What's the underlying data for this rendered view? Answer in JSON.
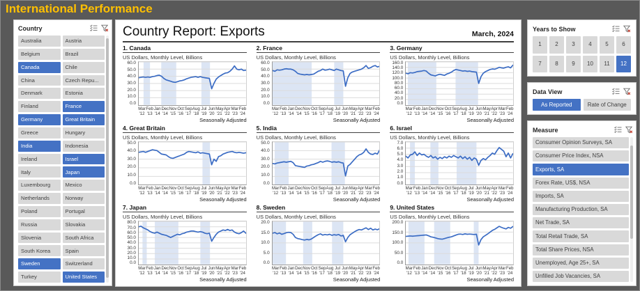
{
  "app": {
    "title": "International Performance"
  },
  "colors": {
    "accent": "#4472C4",
    "line": "#3B6CC4",
    "band": "#DCE5F4",
    "grid": "#DCDCDC",
    "title_gold": "#FFC000",
    "background": "#595959",
    "button_gray": "#D9D9D9"
  },
  "country_panel": {
    "title": "Country",
    "selected": [
      "Canada",
      "France",
      "Germany",
      "Great Britain",
      "India",
      "Israel",
      "Japan",
      "Sweden",
      "United States"
    ],
    "items": [
      "Australia",
      "Austria",
      "Belgium",
      "Brazil",
      "Canada",
      "Chile",
      "China",
      "Czech Repu...",
      "Denmark",
      "Estonia",
      "Finland",
      "France",
      "Germany",
      "Great Britain",
      "Greece",
      "Hungary",
      "India",
      "Indonesia",
      "Ireland",
      "Israel",
      "Italy",
      "Japan",
      "Luxembourg",
      "Mexico",
      "Netherlands",
      "Norway",
      "Poland",
      "Portugal",
      "Russia",
      "Slovakia",
      "Slovenia",
      "South Africa",
      "South Korea",
      "Spain",
      "Sweden",
      "Switzerland",
      "Turkey",
      "United States"
    ]
  },
  "main": {
    "title": "Country Report: Exports",
    "date": "March, 2024"
  },
  "chart_common": {
    "subtitle": "US Dollars, Monthly Level, Billions",
    "footer": "Seasonally Adjusted",
    "x_months": [
      "Mar",
      "Feb",
      "Jan",
      "Dec",
      "Nov",
      "Oct",
      "Sep",
      "Aug",
      "Jul",
      "Jun",
      "May",
      "Apr",
      "Mar",
      "Feb"
    ],
    "x_years": [
      "'12",
      "'13",
      "'14",
      "'14",
      "'15",
      "'16",
      "'17",
      "'18",
      "'19",
      "'20",
      "'21",
      "'22",
      "'23",
      "'24"
    ]
  },
  "chart_data": [
    {
      "type": "line",
      "title": "1. Canada",
      "country": "Canada",
      "ylabel": "US Dollars, Monthly Level, Billions",
      "ylim": [
        0,
        60
      ],
      "yticks": [
        0,
        10,
        20,
        30,
        40,
        50,
        60
      ],
      "bands": [
        [
          0.045,
          0.105
        ],
        [
          0.21,
          0.35
        ],
        [
          0.585,
          0.665
        ]
      ],
      "values": [
        38,
        38.5,
        39,
        38.5,
        39,
        38.5,
        39.5,
        40,
        41,
        41.5,
        40,
        37,
        35,
        34,
        33,
        32,
        31.5,
        32.5,
        33.5,
        34,
        35,
        36.5,
        37.5,
        38.5,
        39,
        39.5,
        38.5,
        39.5,
        38.5,
        38,
        37.5,
        37,
        22.5,
        30,
        36,
        39,
        41,
        43,
        44.5,
        45,
        47,
        50,
        54.5,
        50,
        49,
        50,
        48,
        48.5
      ]
    },
    {
      "type": "line",
      "title": "2. France",
      "country": "France",
      "ylabel": "US Dollars, Monthly Level, Billions",
      "ylim": [
        0,
        60
      ],
      "yticks": [
        0,
        10,
        20,
        30,
        40,
        50,
        60
      ],
      "bands": [
        [
          0.0,
          0.365
        ],
        [
          0.575,
          0.66
        ]
      ],
      "values": [
        48,
        47,
        49,
        48.5,
        49,
        50,
        50.5,
        50,
        50,
        49,
        47,
        44,
        43,
        42.5,
        42,
        42.5,
        42,
        42.5,
        43,
        45,
        47,
        48,
        50,
        48.5,
        49,
        50,
        49,
        48,
        50,
        49,
        48,
        47.5,
        26,
        38,
        44,
        46,
        47,
        48,
        49,
        50,
        52,
        55,
        51,
        52,
        54,
        55,
        53,
        54
      ]
    },
    {
      "type": "line",
      "title": "3. Germany",
      "country": "Germany",
      "ylabel": "US Dollars, Monthly Level, Billions",
      "ylim": [
        0,
        160
      ],
      "yticks": [
        0,
        20,
        40,
        60,
        80,
        100,
        120,
        140,
        160
      ],
      "bands": [
        [
          0.02,
          0.285
        ],
        [
          0.465,
          0.675
        ]
      ],
      "values": [
        118,
        116,
        120,
        119,
        121,
        124,
        125,
        126,
        128,
        126,
        118,
        112,
        110,
        108,
        112,
        114,
        112,
        110,
        115,
        118,
        122,
        128,
        132,
        130,
        128,
        126,
        127,
        125,
        126,
        124,
        123,
        122,
        80,
        105,
        118,
        124,
        128,
        132,
        134,
        133,
        136,
        140,
        138,
        137,
        140,
        142,
        138,
        148
      ]
    },
    {
      "type": "line",
      "title": "4. Great Britain",
      "country": "Great Britain",
      "ylabel": "US Dollars, Monthly Level, Billions",
      "ylim": [
        0,
        50
      ],
      "yticks": [
        0,
        10,
        20,
        30,
        40,
        50
      ],
      "bands": [
        [
          0.595,
          0.665
        ]
      ],
      "values": [
        38,
        38.5,
        39,
        38,
        39,
        40,
        41,
        40.5,
        40,
        38,
        36,
        35.5,
        35,
        33,
        31.5,
        31,
        32,
        33,
        34,
        35,
        36,
        38,
        39,
        38.5,
        38,
        37.5,
        38.5,
        37,
        37.5,
        37,
        36.5,
        36,
        23.5,
        30,
        27.5,
        33,
        34,
        36,
        37,
        38,
        38.5,
        39,
        38,
        37.5,
        38,
        37.5,
        37,
        37.5
      ]
    },
    {
      "type": "line",
      "title": "5. India",
      "country": "India",
      "ylabel": "US Dollars, Monthly Level, Billions",
      "ylim": [
        0,
        50
      ],
      "yticks": [
        0,
        10,
        20,
        30,
        40,
        50
      ],
      "bands": [
        [
          0.02,
          0.15
        ],
        [
          0.55,
          0.675
        ]
      ],
      "values": [
        25,
        24.5,
        25.5,
        26,
        26.5,
        27,
        26.5,
        27,
        27.5,
        26,
        22.5,
        22,
        21.5,
        21,
        20.5,
        22,
        22.5,
        23.5,
        24,
        25,
        26,
        27.5,
        26.5,
        27.5,
        28,
        27.5,
        26.5,
        27,
        26.5,
        27,
        26,
        25.5,
        10.5,
        22,
        24,
        27,
        30,
        33,
        35,
        36,
        38,
        42,
        38,
        36,
        35.5,
        37,
        36,
        41
      ]
    },
    {
      "type": "line",
      "title": "6. Israel",
      "country": "Israel",
      "ylabel": "US Dollars, Monthly Level, Billions",
      "ylim": [
        0,
        7
      ],
      "yticks": [
        0,
        1,
        2,
        3,
        4,
        5,
        6,
        7
      ],
      "bands": [
        [
          0.04,
          0.085
        ],
        [
          0.23,
          0.305
        ],
        [
          0.475,
          0.66
        ]
      ],
      "values": [
        4.7,
        4.4,
        4.9,
        5.0,
        5.4,
        4.8,
        5.2,
        4.9,
        5.0,
        4.7,
        4.5,
        4.8,
        4.4,
        4.6,
        4.2,
        4.5,
        4.3,
        4.6,
        4.4,
        4.7,
        4.5,
        4.8,
        4.6,
        4.4,
        4.7,
        4.3,
        4.6,
        4.2,
        4.5,
        4.0,
        4.4,
        4.2,
        3.2,
        4.0,
        4.3,
        4.1,
        4.5,
        4.8,
        5.2,
        5.0,
        5.6,
        6.1,
        5.8,
        5.5,
        4.6,
        5.2,
        4.4,
        5.1
      ]
    },
    {
      "type": "line",
      "title": "7. Japan",
      "country": "Japan",
      "ylabel": "US Dollars, Monthly Level, Billions",
      "ylim": [
        0,
        80
      ],
      "yticks": [
        0,
        10,
        20,
        30,
        40,
        50,
        60,
        70,
        80
      ],
      "bands": [
        [
          0.035,
          0.075
        ],
        [
          0.15,
          0.37
        ],
        [
          0.575,
          0.665
        ]
      ],
      "values": [
        70,
        71,
        68,
        66,
        64,
        61,
        59,
        58,
        60,
        58,
        56,
        55,
        54,
        52,
        50,
        52,
        54,
        56,
        55,
        57,
        58,
        60,
        61,
        62,
        62,
        61,
        60,
        61,
        60,
        58,
        57,
        58,
        43,
        50,
        56,
        60,
        62,
        64,
        63,
        65,
        63,
        64,
        60,
        58,
        57,
        59,
        62,
        58
      ]
    },
    {
      "type": "line",
      "title": "8. Sweden",
      "country": "Sweden",
      "ylabel": "US Dollars, Monthly Level, Billions",
      "ylim": [
        0,
        20
      ],
      "yticks": [
        0,
        5,
        10,
        15,
        20
      ],
      "bands": [
        [
          0.0,
          0.125
        ],
        [
          0.285,
          0.37
        ],
        [
          0.555,
          0.66
        ]
      ],
      "values": [
        14.5,
        14.8,
        14.2,
        14.6,
        14.0,
        14.3,
        14.7,
        14.9,
        14.8,
        14.0,
        12.5,
        12.0,
        11.8,
        11.5,
        11.3,
        11.6,
        11.4,
        11.8,
        12.5,
        13.2,
        13.8,
        14.2,
        13.6,
        13.9,
        13.7,
        14.0,
        13.5,
        13.8,
        13.6,
        13.9,
        13.2,
        13.5,
        10.5,
        12.5,
        13.8,
        14.5,
        15.2,
        15.8,
        16.2,
        16.0,
        16.5,
        17.0,
        16.2,
        16.8,
        16.0,
        16.4,
        16.1,
        16.6
      ]
    },
    {
      "type": "line",
      "title": "9. United States",
      "country": "United States",
      "ylabel": "US Dollars, Monthly Level, Billions",
      "ylim": [
        0,
        200
      ],
      "yticks": [
        0,
        50,
        100,
        150,
        200
      ],
      "bands": [
        [
          0.025,
          0.175
        ],
        [
          0.265,
          0.415
        ],
        [
          0.635,
          0.68
        ]
      ],
      "values": [
        130,
        131,
        132,
        131,
        132,
        133,
        134,
        135,
        136,
        137,
        133,
        128,
        126,
        123,
        120,
        118,
        117,
        120,
        123,
        126,
        128,
        132,
        136,
        140,
        141,
        139,
        142,
        140,
        141,
        140,
        139,
        140,
        90,
        115,
        128,
        135,
        142,
        150,
        158,
        163,
        170,
        177,
        172,
        168,
        165,
        172,
        168,
        176
      ]
    }
  ],
  "years_panel": {
    "title": "Years to Show",
    "options": [
      "1",
      "2",
      "3",
      "4",
      "5",
      "6",
      "7",
      "8",
      "9",
      "10",
      "11",
      "12"
    ],
    "selected": "12"
  },
  "data_view_panel": {
    "title": "Data View",
    "options": [
      {
        "label": "As Reported",
        "selected": true
      },
      {
        "label": "Rate of Change",
        "selected": false
      }
    ]
  },
  "measure_panel": {
    "title": "Measure",
    "selected": "Exports, SA",
    "items": [
      "Consumer Opinion Surveys, SA",
      "Consumer Price Index, NSA",
      "Exports, SA",
      "Forex Rate, US$, NSA",
      "Imports, SA",
      "Manufacturing Production, SA",
      "Net Trade, SA",
      "Total Retail Trade, SA",
      "Total Share Prices, NSA",
      "Unemployed, Age 25+, SA",
      "Unfilled Job Vacancies, SA"
    ]
  }
}
